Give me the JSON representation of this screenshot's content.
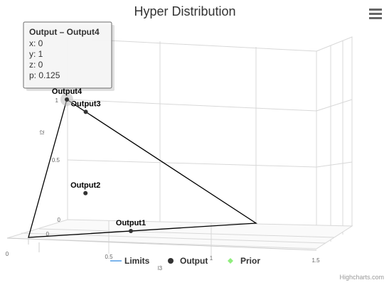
{
  "chart_data": {
    "type": "scatter",
    "title": "Hyper Distribution",
    "xlabel": "l3",
    "ylabel": "l2",
    "xlim": [
      0,
      1.5
    ],
    "ylim": [
      0,
      1
    ],
    "x_ticks": [
      "0",
      "0.5",
      "1",
      "1.5"
    ],
    "y_ticks": [
      "0",
      "0.5",
      "1"
    ],
    "z_ticks": [
      "0"
    ],
    "series": [
      {
        "name": "Limits",
        "kind": "line",
        "color": "#000000",
        "points": [
          {
            "x": 0,
            "y": 1,
            "z": 0
          },
          {
            "x": 1,
            "y": 0,
            "z": 0
          },
          {
            "x": 0,
            "y": 0,
            "z": 1
          },
          {
            "x": 0,
            "y": 1,
            "z": 0
          }
        ]
      },
      {
        "name": "Output",
        "kind": "scatter",
        "color": "#333333",
        "points": [
          {
            "label": "Output1",
            "x": 0.45,
            "y": 0.0,
            "z": 0.55
          },
          {
            "label": "Output2",
            "x": 0.2,
            "y": 0.3,
            "z": 0.5
          },
          {
            "label": "Output3",
            "x": 0.1,
            "y": 0.9,
            "z": 0.0
          },
          {
            "label": "Output4",
            "x": 0,
            "y": 1,
            "z": 0,
            "p": 0.125
          }
        ]
      },
      {
        "name": "Prior",
        "kind": "scatter",
        "color": "#90ed7d",
        "points": []
      }
    ],
    "legend": [
      "Limits",
      "Output",
      "Prior"
    ],
    "legend_position": "bottom-center",
    "grid": true
  },
  "tooltip": {
    "title": "Output – Output4",
    "lines": [
      "x: 0",
      "y: 1",
      "z: 0",
      "p: 0.125"
    ]
  },
  "menu_icon": "hamburger-menu-icon",
  "credits": "Highcharts.com"
}
